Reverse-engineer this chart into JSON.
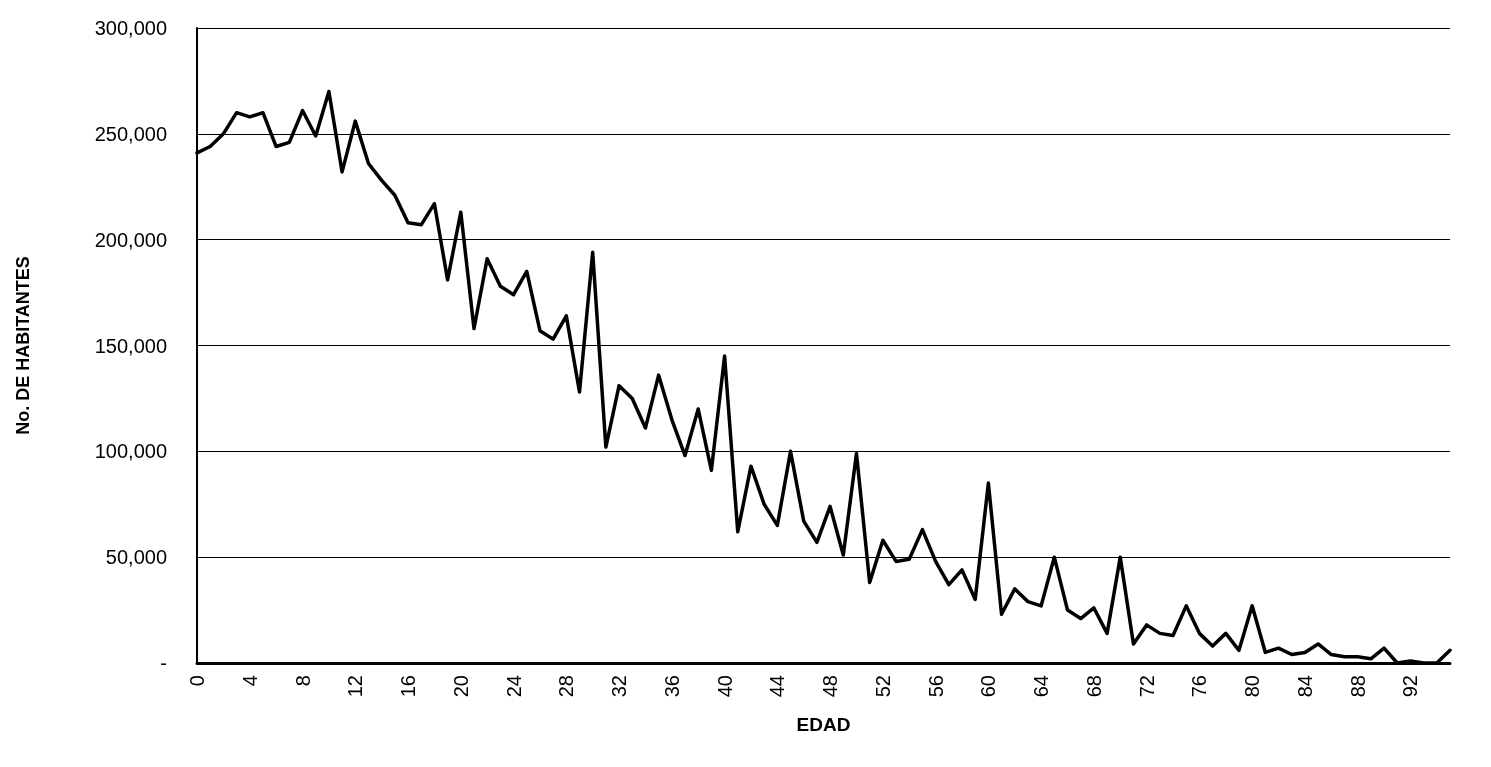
{
  "chart_data": {
    "type": "line",
    "xlabel": "EDAD",
    "ylabel": "No. DE HABITANTES",
    "categories": [
      "0",
      null,
      null,
      null,
      "4",
      null,
      null,
      null,
      "8",
      null,
      null,
      null,
      "12",
      null,
      null,
      null,
      "16",
      null,
      null,
      null,
      "20",
      null,
      null,
      null,
      "24",
      null,
      null,
      null,
      "28",
      null,
      null,
      null,
      "32",
      null,
      null,
      null,
      "36",
      null,
      null,
      null,
      "40",
      null,
      null,
      null,
      "44",
      null,
      null,
      null,
      "48",
      null,
      null,
      null,
      "52",
      null,
      null,
      null,
      "56",
      null,
      null,
      null,
      "60",
      null,
      null,
      null,
      "64",
      null,
      null,
      null,
      "68",
      null,
      null,
      null,
      "72",
      null,
      null,
      null,
      "76",
      null,
      null,
      null,
      "80",
      null,
      null,
      null,
      "84",
      null,
      null,
      null,
      "88",
      null,
      null,
      null,
      "92",
      null,
      null,
      null
    ],
    "series": [
      {
        "color": "#000000",
        "values": [
          241000,
          244000,
          250000,
          260000,
          258000,
          260000,
          244000,
          246000,
          261000,
          249000,
          270000,
          232000,
          256000,
          236000,
          228000,
          221000,
          208000,
          207000,
          217000,
          181000,
          213000,
          158000,
          191000,
          178000,
          174000,
          185000,
          157000,
          153000,
          164000,
          128000,
          194000,
          102000,
          131000,
          125000,
          111000,
          136000,
          115000,
          98000,
          120000,
          91000,
          145000,
          62000,
          93000,
          75000,
          65000,
          100000,
          67000,
          57000,
          74000,
          51000,
          99000,
          38000,
          58000,
          48000,
          49000,
          63000,
          48000,
          37000,
          44000,
          30000,
          85000,
          23000,
          35000,
          29000,
          27000,
          50000,
          25000,
          21000,
          26000,
          14000,
          50000,
          9000,
          18000,
          14000,
          13000,
          27000,
          14000,
          8000,
          14000,
          6000,
          27000,
          5000,
          7000,
          4000,
          5000,
          9000,
          4000,
          3000,
          3000,
          2000,
          7000,
          0,
          1000,
          0,
          0,
          6000
        ]
      }
    ],
    "ylim": [
      0,
      300000
    ],
    "yticks": [
      {
        "value": 0,
        "label": "-"
      },
      {
        "value": 50000,
        "label": "50,000"
      },
      {
        "value": 100000,
        "label": "100,000"
      },
      {
        "value": 150000,
        "label": "150,000"
      },
      {
        "value": 200000,
        "label": "200,000"
      },
      {
        "value": 250000,
        "label": "250,000"
      },
      {
        "value": 300000,
        "label": "300,000"
      }
    ],
    "grid": "y",
    "marker": "none",
    "line_style": "solid"
  }
}
